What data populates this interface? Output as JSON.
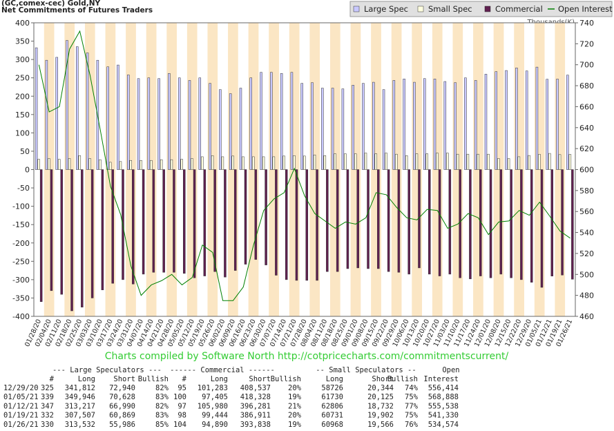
{
  "chart_data": {
    "type": "bar",
    "title": "(GC,comex-cec) Gold,NY",
    "subtitle": "Net Commitments of Futures Traders",
    "y2_label": "Thousands(K)",
    "footer": "Charts compiled by Software North  http://cotpricecharts.com/commitmentscurrent/",
    "categories": [
      "01/28/20",
      "02/04/20",
      "02/11/20",
      "02/18/20",
      "02/25/20",
      "03/03/20",
      "03/10/20",
      "03/17/20",
      "03/24/20",
      "03/31/20",
      "04/07/20",
      "04/14/20",
      "04/21/20",
      "04/28/20",
      "05/05/20",
      "05/12/20",
      "05/19/20",
      "05/26/20",
      "06/02/20",
      "06/09/20",
      "06/16/20",
      "06/23/20",
      "06/30/20",
      "07/07/20",
      "07/14/20",
      "07/21/20",
      "07/28/20",
      "08/04/20",
      "08/11/20",
      "08/18/20",
      "08/25/20",
      "09/01/20",
      "09/08/20",
      "09/15/20",
      "09/22/20",
      "09/29/20",
      "10/06/20",
      "10/13/20",
      "10/20/20",
      "10/27/20",
      "11/03/20",
      "11/10/20",
      "11/17/20",
      "11/24/20",
      "12/01/20",
      "12/08/20",
      "12/15/20",
      "12/22/20",
      "12/29/20",
      "01/05/21",
      "01/12/21",
      "01/19/21",
      "01/26/21"
    ],
    "series": [
      {
        "name": "Large Spec",
        "type": "bar",
        "color": "#c8c8ff",
        "values": [
          332,
          298,
          306,
          352,
          335,
          318,
          298,
          280,
          285,
          258,
          248,
          250,
          248,
          262,
          250,
          243,
          250,
          235,
          218,
          207,
          222,
          250,
          265,
          265,
          262,
          265,
          235,
          237,
          222,
          222,
          220,
          230,
          235,
          238,
          218,
          243,
          247,
          238,
          248,
          247,
          240,
          237,
          250,
          243,
          260,
          267,
          270,
          277,
          268.9,
          279.3,
          246.2,
          246.6,
          257.5
        ]
      },
      {
        "name": "Small Spec",
        "type": "bar",
        "color": "#ffffe0",
        "values": [
          28,
          30,
          28,
          30,
          38,
          30,
          27,
          20,
          22,
          25,
          25,
          25,
          27,
          27,
          28,
          30,
          35,
          38,
          35,
          37,
          35,
          35,
          35,
          35,
          37,
          38,
          37,
          40,
          38,
          43,
          43,
          43,
          45,
          43,
          45,
          42,
          38,
          43,
          43,
          45,
          45,
          42,
          42,
          42,
          42,
          30,
          30,
          35,
          38.4,
          41.6,
          44.1,
          40.8,
          41.4
        ]
      },
      {
        "name": "Commercial",
        "type": "bar",
        "color": "#602050",
        "values": [
          -360,
          -330,
          -340,
          -385,
          -375,
          -350,
          -328,
          -310,
          -300,
          -312,
          -285,
          -280,
          -280,
          -280,
          -283,
          -295,
          -290,
          -278,
          -293,
          -275,
          -258,
          -245,
          -260,
          -288,
          -300,
          -302,
          -302,
          -302,
          -278,
          -278,
          -270,
          -268,
          -270,
          -270,
          -278,
          -280,
          -285,
          -268,
          -285,
          -290,
          -285,
          -295,
          -298,
          -290,
          -295,
          -285,
          -295,
          -300,
          -307.3,
          -321.0,
          -290.3,
          -287.5,
          -298.9
        ]
      },
      {
        "name": "Open Interest",
        "type": "line",
        "axis": "y2",
        "color": "#008000",
        "values": [
          700,
          655,
          660,
          715,
          732,
          690,
          638,
          584,
          557,
          508,
          480,
          490,
          494,
          500,
          490,
          497,
          528,
          521,
          475,
          475,
          488,
          528,
          561,
          572,
          578,
          601,
          575,
          558,
          551,
          544,
          550,
          548,
          554,
          578,
          576,
          564,
          554,
          552,
          562,
          561,
          544,
          548,
          558,
          554,
          538,
          550,
          551,
          561,
          556.414,
          568.888,
          555.538,
          541.33,
          534.574
        ]
      }
    ],
    "ylim": [
      -400,
      400
    ],
    "yticks": [
      -400,
      -350,
      -300,
      -250,
      -200,
      -150,
      -100,
      -50,
      0,
      50,
      100,
      150,
      200,
      250,
      300,
      350,
      400
    ],
    "y2lim": [
      460,
      740
    ],
    "y2ticks": [
      460,
      480,
      500,
      520,
      540,
      560,
      580,
      600,
      620,
      640,
      660,
      680,
      700,
      720,
      740
    ],
    "band_color": "#fbe6c4",
    "legend": "top-right"
  },
  "table": {
    "group_headers": [
      "--- Large Speculators ---",
      "------ Commercial ------",
      "-- Small Speculators --",
      "Open"
    ],
    "columns": [
      "#",
      "Long",
      "Short",
      "Bullish",
      "#",
      "Long",
      "Short",
      "Bullish",
      "Long",
      "Short",
      "Bullish",
      "Interest"
    ],
    "rows": [
      [
        "12/29/20",
        "325",
        "341,812",
        "72,940",
        "82%",
        "95",
        "101,283",
        "408,537",
        "20%",
        "58726",
        "20,344",
        "74%",
        "556,414"
      ],
      [
        "01/05/21",
        "339",
        "349,946",
        "70,628",
        "83%",
        "100",
        "97,405",
        "418,328",
        "19%",
        "61730",
        "20,125",
        "75%",
        "568,888"
      ],
      [
        "01/12/21",
        "347",
        "313,217",
        "66,990",
        "82%",
        "97",
        "105,980",
        "396,281",
        "21%",
        "62806",
        "18,732",
        "77%",
        "555,538"
      ],
      [
        "01/19/21",
        "332",
        "307,507",
        "60,869",
        "83%",
        "98",
        "99,444",
        "386,911",
        "20%",
        "60731",
        "19,902",
        "75%",
        "541,330"
      ],
      [
        "01/26/21",
        "330",
        "313,532",
        "55,986",
        "85%",
        "104",
        "94,890",
        "393,838",
        "19%",
        "60968",
        "19,566",
        "76%",
        "534,574"
      ]
    ]
  }
}
